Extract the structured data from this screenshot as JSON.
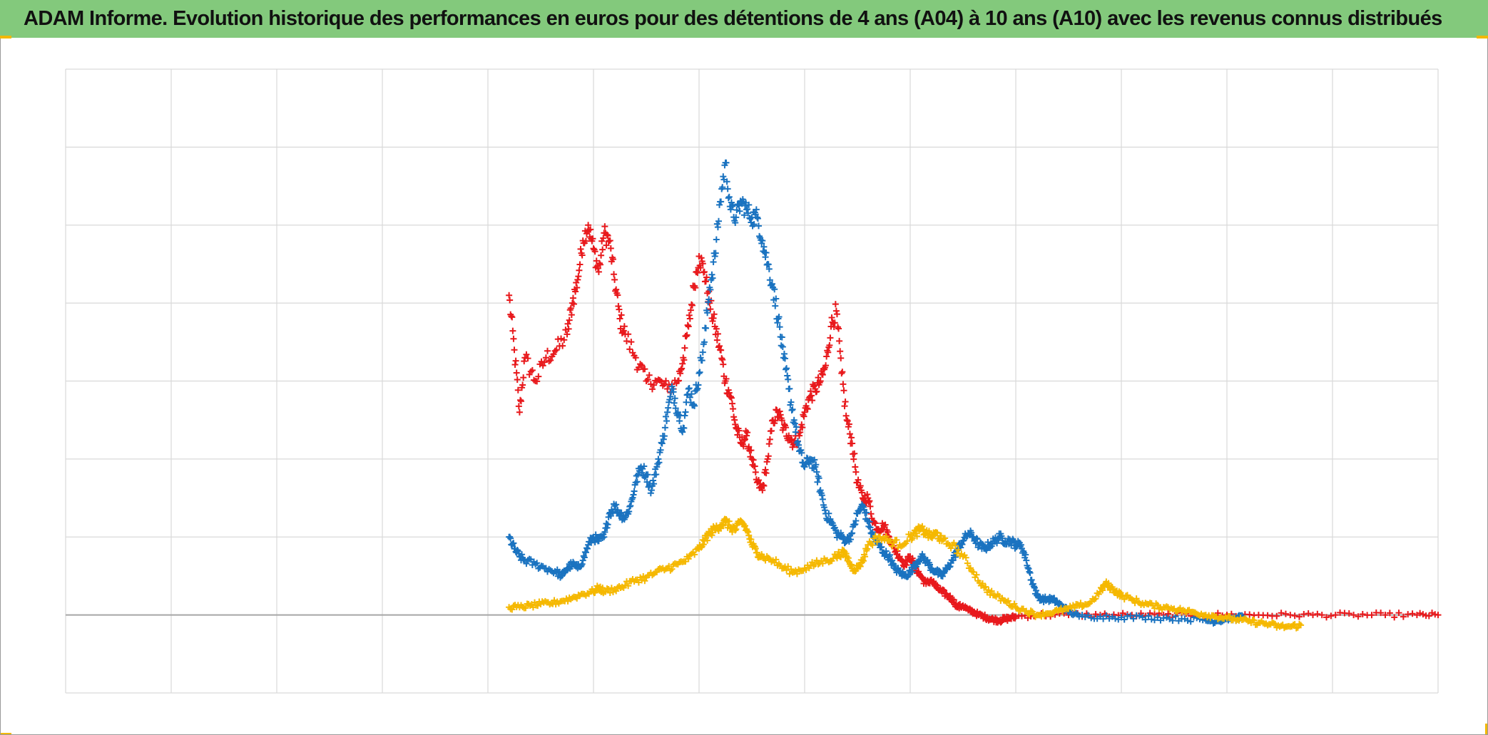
{
  "header": {
    "title": "ADAM Informe. Evolution historique des performances en euros pour des détentions de 4 ans (A04) à 10 ans (A10) avec les revenus connus distribués",
    "background_color": "#83c97c"
  },
  "colors": {
    "accent_corner": "#f2b800",
    "grid": "#d9d9d9",
    "zero_line": "#a6a6a6"
  },
  "chart_data": {
    "type": "scatter",
    "title": "ADAM Informe. Evolution historique des performances en euros pour des détentions de 4 ans (A04) à 10 ans (A10) avec les revenus connus distribués",
    "xlabel": "",
    "ylabel": "",
    "xlim": [
      0,
      13
    ],
    "ylim": [
      -1,
      7
    ],
    "x_gridlines": 13,
    "y_gridlines": 8,
    "zero_line_y": 0,
    "grid": true,
    "marker": "plus",
    "tick_labels_visible": false,
    "series": [
      {
        "color": "#e8191c",
        "points": [
          [
            4.2,
            4.1
          ],
          [
            4.25,
            3.4
          ],
          [
            4.3,
            2.6
          ],
          [
            4.35,
            3.3
          ],
          [
            4.45,
            3.0
          ],
          [
            4.55,
            3.3
          ],
          [
            4.65,
            3.4
          ],
          [
            4.75,
            3.6
          ],
          [
            4.8,
            4.0
          ],
          [
            4.85,
            4.3
          ],
          [
            4.9,
            4.8
          ],
          [
            4.95,
            5.0
          ],
          [
            5.0,
            4.7
          ],
          [
            5.05,
            4.4
          ],
          [
            5.1,
            4.9
          ],
          [
            5.15,
            4.8
          ],
          [
            5.2,
            4.3
          ],
          [
            5.25,
            3.8
          ],
          [
            5.3,
            3.6
          ],
          [
            5.4,
            3.3
          ],
          [
            5.5,
            3.0
          ],
          [
            5.6,
            3.0
          ],
          [
            5.7,
            2.9
          ],
          [
            5.8,
            3.0
          ],
          [
            5.85,
            3.3
          ],
          [
            5.9,
            3.7
          ],
          [
            5.95,
            4.2
          ],
          [
            6.0,
            4.6
          ],
          [
            6.05,
            4.4
          ],
          [
            6.1,
            4.0
          ],
          [
            6.15,
            3.7
          ],
          [
            6.2,
            3.4
          ],
          [
            6.25,
            3.0
          ],
          [
            6.3,
            2.8
          ],
          [
            6.35,
            2.4
          ],
          [
            6.4,
            2.2
          ],
          [
            6.45,
            2.3
          ],
          [
            6.5,
            2.0
          ],
          [
            6.55,
            1.7
          ],
          [
            6.6,
            1.6
          ],
          [
            6.65,
            2.0
          ],
          [
            6.7,
            2.5
          ],
          [
            6.75,
            2.6
          ],
          [
            6.8,
            2.4
          ],
          [
            6.85,
            2.3
          ],
          [
            6.9,
            2.2
          ],
          [
            6.95,
            2.3
          ],
          [
            7.0,
            2.6
          ],
          [
            7.05,
            2.8
          ],
          [
            7.1,
            2.9
          ],
          [
            7.15,
            3.0
          ],
          [
            7.2,
            3.2
          ],
          [
            7.25,
            3.7
          ],
          [
            7.3,
            3.9
          ],
          [
            7.35,
            3.1
          ],
          [
            7.4,
            2.5
          ],
          [
            7.45,
            2.2
          ],
          [
            7.5,
            1.7
          ],
          [
            7.55,
            1.5
          ],
          [
            7.6,
            1.5
          ],
          [
            7.65,
            1.2
          ],
          [
            7.7,
            1.1
          ],
          [
            7.75,
            1.15
          ],
          [
            7.8,
            1.0
          ],
          [
            7.85,
            0.85
          ],
          [
            7.9,
            0.75
          ],
          [
            7.95,
            0.65
          ],
          [
            8.0,
            0.75
          ],
          [
            8.05,
            0.6
          ],
          [
            8.1,
            0.5
          ],
          [
            8.15,
            0.4
          ],
          [
            8.2,
            0.45
          ],
          [
            8.25,
            0.35
          ],
          [
            8.3,
            0.3
          ],
          [
            8.35,
            0.25
          ],
          [
            8.4,
            0.2
          ],
          [
            8.45,
            0.1
          ],
          [
            8.5,
            0.12
          ],
          [
            8.55,
            0.06
          ],
          [
            8.6,
            0.04
          ],
          [
            8.65,
            0.0
          ],
          [
            8.7,
            -0.02
          ],
          [
            8.75,
            -0.05
          ],
          [
            8.8,
            -0.06
          ],
          [
            8.85,
            -0.07
          ],
          [
            8.9,
            -0.05
          ],
          [
            8.95,
            -0.04
          ],
          [
            9.0,
            -0.02
          ],
          [
            9.2,
            0.0
          ],
          [
            9.5,
            0.0
          ],
          [
            9.8,
            0.0
          ],
          [
            10.1,
            0.0
          ],
          [
            10.4,
            0.0
          ],
          [
            10.7,
            0.0
          ],
          [
            11.0,
            0.0
          ],
          [
            11.3,
            0.0
          ],
          [
            11.6,
            0.0
          ],
          [
            11.9,
            0.0
          ],
          [
            12.2,
            0.0
          ],
          [
            12.5,
            0.0
          ],
          [
            12.8,
            0.0
          ],
          [
            13.0,
            0.0
          ]
        ]
      },
      {
        "color": "#1a73c0",
        "points": [
          [
            4.2,
            1.0
          ],
          [
            4.25,
            0.85
          ],
          [
            4.3,
            0.75
          ],
          [
            4.35,
            0.7
          ],
          [
            4.45,
            0.65
          ],
          [
            4.55,
            0.6
          ],
          [
            4.65,
            0.55
          ],
          [
            4.7,
            0.5
          ],
          [
            4.75,
            0.6
          ],
          [
            4.8,
            0.65
          ],
          [
            4.85,
            0.6
          ],
          [
            4.9,
            0.7
          ],
          [
            4.95,
            0.9
          ],
          [
            5.0,
            1.0
          ],
          [
            5.05,
            0.95
          ],
          [
            5.1,
            1.0
          ],
          [
            5.15,
            1.3
          ],
          [
            5.2,
            1.4
          ],
          [
            5.25,
            1.3
          ],
          [
            5.3,
            1.25
          ],
          [
            5.35,
            1.4
          ],
          [
            5.4,
            1.7
          ],
          [
            5.45,
            1.9
          ],
          [
            5.5,
            1.8
          ],
          [
            5.55,
            1.6
          ],
          [
            5.6,
            1.9
          ],
          [
            5.65,
            2.2
          ],
          [
            5.7,
            2.6
          ],
          [
            5.75,
            2.9
          ],
          [
            5.8,
            2.6
          ],
          [
            5.85,
            2.4
          ],
          [
            5.9,
            2.9
          ],
          [
            5.95,
            2.7
          ],
          [
            6.0,
            3.1
          ],
          [
            6.05,
            3.5
          ],
          [
            6.1,
            4.2
          ],
          [
            6.15,
            4.6
          ],
          [
            6.2,
            5.3
          ],
          [
            6.25,
            5.8
          ],
          [
            6.3,
            5.2
          ],
          [
            6.35,
            5.1
          ],
          [
            6.4,
            5.3
          ],
          [
            6.45,
            5.2
          ],
          [
            6.5,
            5.1
          ],
          [
            6.55,
            5.1
          ],
          [
            6.6,
            4.8
          ],
          [
            6.65,
            4.5
          ],
          [
            6.7,
            4.2
          ],
          [
            6.75,
            3.8
          ],
          [
            6.8,
            3.3
          ],
          [
            6.85,
            2.9
          ],
          [
            6.9,
            2.5
          ],
          [
            6.95,
            2.1
          ],
          [
            7.0,
            1.9
          ],
          [
            7.05,
            2.0
          ],
          [
            7.1,
            1.9
          ],
          [
            7.15,
            1.6
          ],
          [
            7.2,
            1.3
          ],
          [
            7.25,
            1.2
          ],
          [
            7.3,
            1.05
          ],
          [
            7.35,
            1.0
          ],
          [
            7.4,
            0.95
          ],
          [
            7.45,
            1.05
          ],
          [
            7.5,
            1.3
          ],
          [
            7.55,
            1.4
          ],
          [
            7.6,
            1.2
          ],
          [
            7.65,
            1.0
          ],
          [
            7.7,
            0.9
          ],
          [
            7.75,
            0.8
          ],
          [
            7.8,
            0.75
          ],
          [
            7.85,
            0.6
          ],
          [
            7.9,
            0.55
          ],
          [
            7.95,
            0.5
          ],
          [
            8.0,
            0.55
          ],
          [
            8.05,
            0.65
          ],
          [
            8.1,
            0.75
          ],
          [
            8.15,
            0.7
          ],
          [
            8.2,
            0.6
          ],
          [
            8.25,
            0.55
          ],
          [
            8.3,
            0.5
          ],
          [
            8.35,
            0.6
          ],
          [
            8.4,
            0.7
          ],
          [
            8.45,
            0.85
          ],
          [
            8.5,
            0.95
          ],
          [
            8.55,
            1.05
          ],
          [
            8.6,
            1.0
          ],
          [
            8.65,
            0.9
          ],
          [
            8.7,
            0.85
          ],
          [
            8.75,
            0.9
          ],
          [
            8.8,
            0.95
          ],
          [
            8.85,
            1.0
          ],
          [
            8.9,
            0.95
          ],
          [
            8.95,
            0.95
          ],
          [
            9.0,
            0.9
          ],
          [
            9.05,
            0.9
          ],
          [
            9.1,
            0.7
          ],
          [
            9.15,
            0.45
          ],
          [
            9.2,
            0.25
          ],
          [
            9.25,
            0.2
          ],
          [
            9.3,
            0.2
          ],
          [
            9.35,
            0.2
          ],
          [
            9.4,
            0.15
          ],
          [
            9.45,
            0.1
          ],
          [
            9.5,
            0.05
          ],
          [
            9.6,
            -0.02
          ],
          [
            9.8,
            -0.02
          ],
          [
            10.0,
            -0.03
          ],
          [
            10.2,
            -0.03
          ],
          [
            10.4,
            -0.04
          ],
          [
            10.6,
            -0.05
          ],
          [
            10.8,
            -0.07
          ],
          [
            10.9,
            -0.08
          ],
          [
            11.0,
            -0.05
          ],
          [
            11.1,
            -0.04
          ],
          [
            11.15,
            -0.02
          ]
        ]
      },
      {
        "color": "#f5b800",
        "points": [
          [
            4.2,
            0.1
          ],
          [
            4.3,
            0.1
          ],
          [
            4.4,
            0.12
          ],
          [
            4.5,
            0.14
          ],
          [
            4.6,
            0.15
          ],
          [
            4.7,
            0.18
          ],
          [
            4.8,
            0.22
          ],
          [
            4.9,
            0.27
          ],
          [
            5.0,
            0.3
          ],
          [
            5.05,
            0.35
          ],
          [
            5.1,
            0.3
          ],
          [
            5.2,
            0.33
          ],
          [
            5.3,
            0.38
          ],
          [
            5.4,
            0.45
          ],
          [
            5.5,
            0.48
          ],
          [
            5.6,
            0.55
          ],
          [
            5.7,
            0.6
          ],
          [
            5.8,
            0.65
          ],
          [
            5.9,
            0.72
          ],
          [
            6.0,
            0.85
          ],
          [
            6.05,
            0.95
          ],
          [
            6.1,
            1.05
          ],
          [
            6.15,
            1.1
          ],
          [
            6.2,
            1.15
          ],
          [
            6.25,
            1.2
          ],
          [
            6.3,
            1.12
          ],
          [
            6.35,
            1.1
          ],
          [
            6.4,
            1.2
          ],
          [
            6.45,
            1.1
          ],
          [
            6.5,
            0.9
          ],
          [
            6.55,
            0.8
          ],
          [
            6.6,
            0.75
          ],
          [
            6.7,
            0.7
          ],
          [
            6.8,
            0.6
          ],
          [
            6.9,
            0.55
          ],
          [
            7.0,
            0.6
          ],
          [
            7.1,
            0.65
          ],
          [
            7.2,
            0.7
          ],
          [
            7.3,
            0.75
          ],
          [
            7.35,
            0.8
          ],
          [
            7.4,
            0.75
          ],
          [
            7.45,
            0.6
          ],
          [
            7.5,
            0.6
          ],
          [
            7.55,
            0.7
          ],
          [
            7.6,
            0.9
          ],
          [
            7.7,
            1.0
          ],
          [
            7.8,
            0.95
          ],
          [
            7.9,
            0.9
          ],
          [
            8.0,
            1.0
          ],
          [
            8.05,
            1.05
          ],
          [
            8.1,
            1.1
          ],
          [
            8.15,
            1.05
          ],
          [
            8.2,
            1.0
          ],
          [
            8.25,
            1.05
          ],
          [
            8.3,
            0.95
          ],
          [
            8.4,
            0.9
          ],
          [
            8.5,
            0.75
          ],
          [
            8.6,
            0.55
          ],
          [
            8.7,
            0.35
          ],
          [
            8.8,
            0.25
          ],
          [
            8.9,
            0.18
          ],
          [
            9.0,
            0.1
          ],
          [
            9.1,
            0.05
          ],
          [
            9.2,
            0.0
          ],
          [
            9.3,
            0.02
          ],
          [
            9.4,
            0.05
          ],
          [
            9.5,
            0.08
          ],
          [
            9.6,
            0.12
          ],
          [
            9.7,
            0.15
          ],
          [
            9.8,
            0.3
          ],
          [
            9.85,
            0.4
          ],
          [
            9.9,
            0.35
          ],
          [
            9.95,
            0.3
          ],
          [
            10.0,
            0.25
          ],
          [
            10.1,
            0.2
          ],
          [
            10.2,
            0.15
          ],
          [
            10.3,
            0.12
          ],
          [
            10.4,
            0.1
          ],
          [
            10.5,
            0.08
          ],
          [
            10.6,
            0.05
          ],
          [
            10.7,
            0.03
          ],
          [
            10.8,
            0.0
          ],
          [
            10.9,
            -0.02
          ],
          [
            11.0,
            -0.04
          ],
          [
            11.1,
            -0.06
          ],
          [
            11.2,
            -0.08
          ],
          [
            11.3,
            -0.1
          ],
          [
            11.4,
            -0.12
          ],
          [
            11.5,
            -0.15
          ],
          [
            11.6,
            -0.15
          ],
          [
            11.7,
            -0.13
          ]
        ]
      }
    ]
  }
}
